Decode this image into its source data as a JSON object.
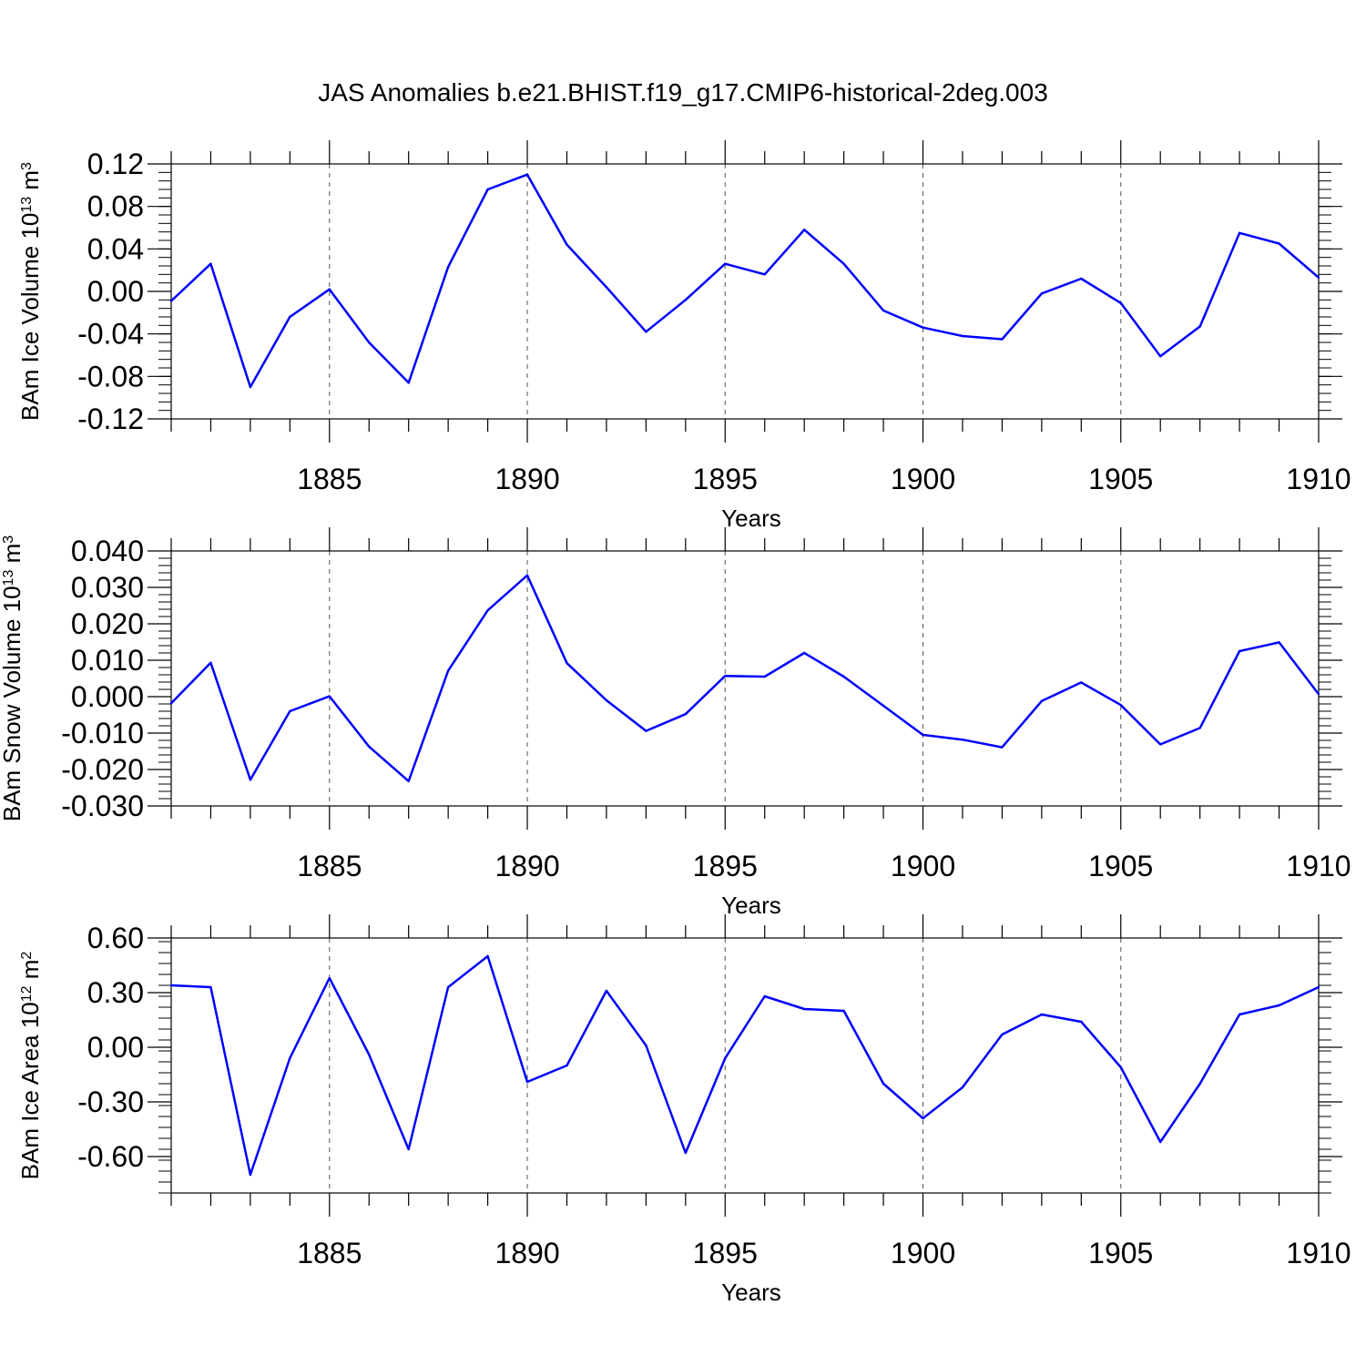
{
  "title": "JAS Anomalies b.e21.BHIST.f19_g17.CMIP6-historical-2deg.003",
  "colors": {
    "line": "#0000ff",
    "axis": "#000000",
    "grid": "#555555"
  },
  "chart_data": [
    {
      "type": "line",
      "xlabel": "Years",
      "ylabel": "BAm Ice Volume 10",
      "ylabel_exp": "13",
      "ylabel_unit": " m",
      "ylabel_unit_exp": "3",
      "xlim": [
        1881,
        1910
      ],
      "ylim": [
        -0.12,
        0.12
      ],
      "x_ticks": [
        1885,
        1890,
        1895,
        1900,
        1905,
        1910
      ],
      "y_ticks": [
        -0.12,
        -0.08,
        -0.04,
        0.0,
        0.04,
        0.08,
        0.12
      ],
      "y_tick_labels": [
        "-0.12",
        "-0.08",
        "-0.04",
        "0.00",
        "0.04",
        "0.08",
        "0.12"
      ],
      "grid": "vertical dashed at major x ticks",
      "x": [
        1881,
        1882,
        1883,
        1884,
        1885,
        1886,
        1887,
        1888,
        1889,
        1890,
        1891,
        1892,
        1893,
        1894,
        1895,
        1896,
        1897,
        1898,
        1899,
        1900,
        1901,
        1902,
        1903,
        1904,
        1905,
        1906,
        1907,
        1908,
        1909,
        1910
      ],
      "values": [
        -0.009,
        0.026,
        -0.09,
        -0.024,
        0.002,
        -0.048,
        -0.086,
        0.023,
        0.096,
        0.11,
        0.044,
        0.004,
        -0.038,
        -0.008,
        0.026,
        0.016,
        0.058,
        0.026,
        -0.018,
        -0.034,
        -0.042,
        -0.045,
        -0.002,
        0.012,
        -0.011,
        -0.061,
        -0.033,
        0.055,
        0.045,
        0.013
      ]
    },
    {
      "type": "line",
      "xlabel": "Years",
      "ylabel": "BAm Snow Volume 10",
      "ylabel_exp": "13",
      "ylabel_unit": " m",
      "ylabel_unit_exp": "3",
      "xlim": [
        1881,
        1910
      ],
      "ylim": [
        -0.03,
        0.04
      ],
      "x_ticks": [
        1885,
        1890,
        1895,
        1900,
        1905,
        1910
      ],
      "y_ticks": [
        -0.03,
        -0.02,
        -0.01,
        0.0,
        0.01,
        0.02,
        0.03,
        0.04
      ],
      "y_tick_labels": [
        "-0.030",
        "-0.020",
        "-0.010",
        "0.000",
        "0.010",
        "0.020",
        "0.030",
        "0.040"
      ],
      "grid": "vertical dashed at major x ticks",
      "x": [
        1881,
        1882,
        1883,
        1884,
        1885,
        1886,
        1887,
        1888,
        1889,
        1890,
        1891,
        1892,
        1893,
        1894,
        1895,
        1896,
        1897,
        1898,
        1899,
        1900,
        1901,
        1902,
        1903,
        1904,
        1905,
        1906,
        1907,
        1908,
        1909,
        1910
      ],
      "values": [
        -0.0018,
        0.0093,
        -0.0228,
        -0.004,
        0.0001,
        -0.0137,
        -0.0232,
        0.0071,
        0.0237,
        0.0333,
        0.0092,
        -0.001,
        -0.0094,
        -0.0048,
        0.0057,
        0.0055,
        0.012,
        0.0055,
        -0.0025,
        -0.0105,
        -0.0118,
        -0.0139,
        -0.0012,
        0.0039,
        -0.0023,
        -0.0131,
        -0.0086,
        0.0125,
        0.0149,
        0.0007
      ]
    },
    {
      "type": "line",
      "xlabel": "Years",
      "ylabel": "BAm Ice Area 10",
      "ylabel_exp": "12",
      "ylabel_unit": " m",
      "ylabel_unit_exp": "2",
      "xlim": [
        1881,
        1910
      ],
      "ylim": [
        -0.8,
        0.6
      ],
      "x_ticks": [
        1885,
        1890,
        1895,
        1900,
        1905,
        1910
      ],
      "y_ticks": [
        -0.6,
        -0.3,
        0.0,
        0.3,
        0.6
      ],
      "y_tick_labels": [
        "-0.60",
        "-0.30",
        "0.00",
        "0.30",
        "0.60"
      ],
      "grid": "vertical dashed at major x ticks",
      "x": [
        1881,
        1882,
        1883,
        1884,
        1885,
        1886,
        1887,
        1888,
        1889,
        1890,
        1891,
        1892,
        1893,
        1894,
        1895,
        1896,
        1897,
        1898,
        1899,
        1900,
        1901,
        1902,
        1903,
        1904,
        1905,
        1906,
        1907,
        1908,
        1909,
        1910
      ],
      "values": [
        0.34,
        0.33,
        -0.7,
        -0.06,
        0.38,
        -0.04,
        -0.56,
        0.33,
        0.5,
        -0.19,
        -0.1,
        0.31,
        0.01,
        -0.58,
        -0.06,
        0.28,
        0.21,
        0.2,
        -0.2,
        -0.39,
        -0.22,
        0.07,
        0.18,
        0.14,
        -0.11,
        -0.52,
        -0.2,
        0.18,
        0.23,
        0.33
      ]
    }
  ]
}
